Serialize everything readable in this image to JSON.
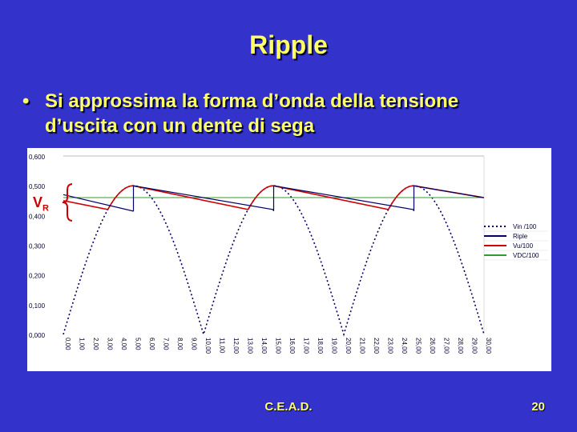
{
  "slide": {
    "title": "Ripple",
    "bullet_symbol": "•",
    "bullet_line1": "Si approssima la forma d’onda della tensione",
    "bullet_line2": "d’uscita con un dente di sega",
    "vr_main": "V",
    "vr_sub": "R",
    "footer": "C.E.A.D.",
    "page_number": "20"
  },
  "colors": {
    "background": "#3333cc",
    "text": "#ffff66",
    "vin": "#000066",
    "ripple": "#000066",
    "vu": "#cc0000",
    "vdc": "#339933",
    "brace": "#cc0000"
  },
  "chart_data": {
    "type": "line",
    "title": "",
    "xlabel": "",
    "ylabel": "",
    "x_ticks": [
      "0,00",
      "1,00",
      "2,00",
      "3,00",
      "4,00",
      "5,00",
      "6,00",
      "7,00",
      "8,00",
      "9,00",
      "10,00",
      "11,00",
      "12,00",
      "13,00",
      "14,00",
      "15,00",
      "16,00",
      "17,00",
      "18,00",
      "19,00",
      "20,00",
      "21,00",
      "22,00",
      "23,00",
      "24,00",
      "25,00",
      "26,00",
      "27,00",
      "28,00",
      "29,00",
      "30,00"
    ],
    "y_ticks": [
      "0,000",
      "0,100",
      "0,200",
      "0,300",
      "0,400",
      "0,500",
      "0,600"
    ],
    "xlim": [
      0,
      30
    ],
    "ylim": [
      0,
      0.6
    ],
    "grid": "horizontal-top-only",
    "legend_position": "right",
    "series": [
      {
        "name": "Vin /100",
        "style": "dotted",
        "color": "#000066",
        "description_values": {
          "amplitude": 0.5,
          "period": 10
        }
      },
      {
        "name": "Riple",
        "style": "solid",
        "color": "#000066",
        "description_values": {
          "peak": 0.5,
          "valley": 0.42,
          "peak_times": [
            5,
            15,
            25
          ]
        }
      },
      {
        "name": "Vu/100",
        "style": "solid",
        "color": "#cc0000",
        "description_values": {
          "peak": 0.5,
          "valley": 0.42,
          "peak_times": [
            5,
            15,
            25
          ]
        }
      },
      {
        "name": "VDC/100",
        "style": "solid",
        "color": "#339933",
        "description_values": {
          "level": 0.46
        }
      }
    ]
  }
}
